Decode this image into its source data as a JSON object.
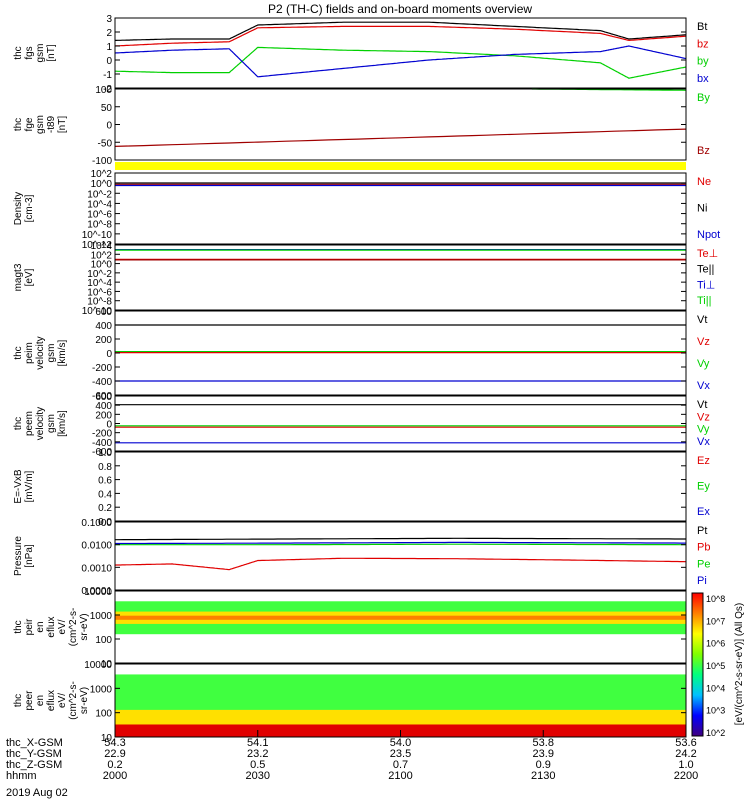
{
  "title": "P2 (TH-C) fields and on-board moments overview",
  "date": "2019 Aug 02",
  "colors": {
    "black": "#000000",
    "red": "#e00000",
    "green": "#00d000",
    "blue": "#0000d0",
    "darkred": "#a00000",
    "yellow": "#ffff00"
  },
  "x_axis": {
    "rows": [
      {
        "label": "thc_X-GSM",
        "values": [
          "54.3",
          "54.1",
          "54.0",
          "53.8",
          "53.6"
        ]
      },
      {
        "label": "thc_Y-GSM",
        "values": [
          "22.9",
          "23.2",
          "23.5",
          "23.9",
          "24.2"
        ]
      },
      {
        "label": "thc_Z-GSM",
        "values": [
          "0.2",
          "0.5",
          "0.7",
          "0.9",
          "1.0"
        ]
      },
      {
        "label": "hhmm",
        "values": [
          "2000",
          "2030",
          "2100",
          "2130",
          "2200"
        ]
      }
    ]
  },
  "colorbar": {
    "label": "[eV/(cm^2-s-sr-eV)] (All Qs)",
    "ticks": [
      "10^8",
      "10^7",
      "10^6",
      "10^5",
      "10^4",
      "10^3",
      "10^2"
    ]
  },
  "chart_data": [
    {
      "type": "line",
      "ylabel": [
        "thc",
        "fgs",
        "gsm",
        "[nT]"
      ],
      "ylim": [
        -2,
        3
      ],
      "yticks": [
        "3",
        "2",
        "1",
        "0",
        "-1",
        "-2"
      ],
      "legend": [
        {
          "name": "Bt",
          "color": "#000000"
        },
        {
          "name": "bz",
          "color": "#e00000"
        },
        {
          "name": "by",
          "color": "#00d000"
        },
        {
          "name": "bx",
          "color": "#0000d0"
        }
      ],
      "series": [
        {
          "name": "Bt",
          "color": "#000000",
          "x": [
            0,
            0.1,
            0.2,
            0.25,
            0.4,
            0.55,
            0.7,
            0.85,
            0.9,
            1
          ],
          "y": [
            1.4,
            1.5,
            1.5,
            2.5,
            2.7,
            2.7,
            2.4,
            2.1,
            1.5,
            1.8
          ]
        },
        {
          "name": "bz",
          "color": "#e00000",
          "x": [
            0,
            0.1,
            0.2,
            0.25,
            0.4,
            0.55,
            0.7,
            0.85,
            0.9,
            1
          ],
          "y": [
            1.0,
            1.2,
            1.3,
            2.3,
            2.4,
            2.4,
            2.2,
            1.9,
            1.4,
            1.7
          ]
        },
        {
          "name": "by",
          "color": "#00d000",
          "x": [
            0,
            0.1,
            0.2,
            0.25,
            0.4,
            0.55,
            0.7,
            0.85,
            0.9,
            1
          ],
          "y": [
            -0.8,
            -0.9,
            -0.9,
            0.9,
            0.7,
            0.6,
            0.3,
            -0.2,
            -1.3,
            -0.5
          ]
        },
        {
          "name": "bx",
          "color": "#0000d0",
          "x": [
            0,
            0.1,
            0.2,
            0.25,
            0.4,
            0.55,
            0.7,
            0.85,
            0.9,
            1
          ],
          "y": [
            0.5,
            0.7,
            0.8,
            -1.2,
            -0.6,
            0.0,
            0.4,
            0.6,
            1.0,
            0.1
          ]
        }
      ]
    },
    {
      "type": "line",
      "ylabel": [
        "thc",
        "fge",
        "gsm",
        "-t89",
        "[nT]"
      ],
      "ylim": [
        -125,
        100
      ],
      "yticks": [
        "100",
        "50",
        "0",
        "-50",
        "-100"
      ],
      "legend": [
        {
          "name": "By",
          "color": "#00d000"
        },
        {
          "name": "Bz",
          "color": "#a00000"
        }
      ],
      "series": [
        {
          "name": "By",
          "color": "#00d000",
          "x": [
            0.73,
            1
          ],
          "y": [
            100,
            96
          ]
        },
        {
          "name": "Bz",
          "color": "#a00000",
          "x": [
            0,
            1
          ],
          "y": [
            -82,
            -27
          ]
        }
      ]
    },
    {
      "type": "line",
      "ylabel": [
        "Density",
        "[cm-3]"
      ],
      "ylim": [
        -14,
        3
      ],
      "log": true,
      "yticks": [
        "10^2",
        "10^0",
        "10^-2",
        "10^-4",
        "10^-6",
        "10^-8",
        "10^-10",
        "10^-12"
      ],
      "legend": [
        {
          "name": "Ne",
          "color": "#e00000"
        },
        {
          "name": "Ni",
          "color": "#000000"
        },
        {
          "name": "Npot",
          "color": "#0000d0"
        }
      ],
      "series": [
        {
          "name": "Ni",
          "color": "#000000",
          "x": [
            0,
            1
          ],
          "y": [
            0.6,
            0.6
          ]
        },
        {
          "name": "Ne",
          "color": "#a00000",
          "x": [
            0,
            1
          ],
          "y": [
            0.3,
            0.3
          ]
        },
        {
          "name": "Npot",
          "color": "#0000d0",
          "x": [
            0,
            1
          ],
          "y": [
            0.0,
            0.0
          ]
        }
      ]
    },
    {
      "type": "line",
      "ylabel": [
        "magt3",
        "[eV]"
      ],
      "ylim": [
        -10,
        4
      ],
      "log": true,
      "yticks": [
        "10^4",
        "10^2",
        "10^0",
        "10^-2",
        "10^-4",
        "10^-6",
        "10^-8",
        "10^-10"
      ],
      "legend": [
        {
          "name": "Te⊥",
          "color": "#e00000"
        },
        {
          "name": "Te||",
          "color": "#000000"
        },
        {
          "name": "Ti⊥",
          "color": "#0000d0"
        },
        {
          "name": "Ti||",
          "color": "#00d000"
        }
      ],
      "series": [
        {
          "name": "Ti⊥",
          "color": "#0000d0",
          "x": [
            0,
            1
          ],
          "y": [
            3.0,
            3.0
          ]
        },
        {
          "name": "Ti||",
          "color": "#00d000",
          "x": [
            0,
            1
          ],
          "y": [
            2.9,
            2.9
          ]
        },
        {
          "name": "Te⊥",
          "color": "#e00000",
          "x": [
            0,
            1
          ],
          "y": [
            0.9,
            0.9
          ]
        },
        {
          "name": "Te||",
          "color": "#a00000",
          "x": [
            0,
            1
          ],
          "y": [
            0.8,
            0.8
          ]
        }
      ]
    },
    {
      "type": "line",
      "ylabel": [
        "thc",
        "peim",
        "velocity",
        "gsm",
        "[km/s]"
      ],
      "ylim": [
        -600,
        600
      ],
      "yticks": [
        "600",
        "400",
        "200",
        "0",
        "-200",
        "-400",
        "-600"
      ],
      "legend": [
        {
          "name": "Vt",
          "color": "#000000"
        },
        {
          "name": "Vz",
          "color": "#e00000"
        },
        {
          "name": "Vy",
          "color": "#00d000"
        },
        {
          "name": "Vx",
          "color": "#0000d0"
        }
      ],
      "series": [
        {
          "name": "Vt",
          "color": "#000000",
          "x": [
            0,
            1
          ],
          "y": [
            400,
            400
          ]
        },
        {
          "name": "Vy",
          "color": "#00d000",
          "x": [
            0,
            1
          ],
          "y": [
            20,
            20
          ]
        },
        {
          "name": "Vz",
          "color": "#e00000",
          "x": [
            0,
            1
          ],
          "y": [
            5,
            5
          ]
        },
        {
          "name": "Vx",
          "color": "#0000d0",
          "x": [
            0,
            1
          ],
          "y": [
            -400,
            -400
          ]
        }
      ]
    },
    {
      "type": "line",
      "ylabel": [
        "thc",
        "peem",
        "velocity",
        "gsm",
        "[km/s]"
      ],
      "ylim": [
        -600,
        600
      ],
      "yticks": [
        "600",
        "400",
        "200",
        "0",
        "-200",
        "-400",
        "-600"
      ],
      "legend": [
        {
          "name": "Vt",
          "color": "#000000"
        },
        {
          "name": "Vz",
          "color": "#e00000"
        },
        {
          "name": "Vy",
          "color": "#00d000"
        },
        {
          "name": "Vx",
          "color": "#0000d0"
        }
      ],
      "series": [
        {
          "name": "Vt",
          "color": "#000000",
          "x": [
            0,
            1
          ],
          "y": [
            410,
            410
          ]
        },
        {
          "name": "Vy",
          "color": "#00d000",
          "x": [
            0,
            1
          ],
          "y": [
            -50,
            -50
          ]
        },
        {
          "name": "Vz",
          "color": "#e00000",
          "x": [
            0,
            1
          ],
          "y": [
            -80,
            -80
          ]
        },
        {
          "name": "Vx",
          "color": "#0000d0",
          "x": [
            0,
            1
          ],
          "y": [
            -420,
            -420
          ]
        }
      ]
    },
    {
      "type": "line",
      "ylabel": [
        "E=-VxB",
        "[mV/m]"
      ],
      "ylim": [
        0,
        1
      ],
      "yticks": [
        "1.0",
        "0.8",
        "0.6",
        "0.4",
        "0.2",
        "0.0"
      ],
      "legend": [
        {
          "name": "Ez",
          "color": "#e00000"
        },
        {
          "name": "Ey",
          "color": "#00d000"
        },
        {
          "name": "Ex",
          "color": "#0000d0"
        }
      ],
      "series": []
    },
    {
      "type": "line",
      "ylabel": [
        "Pressure",
        "[nPa]"
      ],
      "ylim": [
        -4,
        -1
      ],
      "log": true,
      "yticks": [
        "0.1000",
        "0.0100",
        "0.0010",
        "0.0001"
      ],
      "legend": [
        {
          "name": "Pt",
          "color": "#000000"
        },
        {
          "name": "Pb",
          "color": "#e00000"
        },
        {
          "name": "Pe",
          "color": "#00d000"
        },
        {
          "name": "Pi",
          "color": "#0000d0"
        }
      ],
      "series": [
        {
          "name": "Pt",
          "color": "#000000",
          "x": [
            0,
            0.3,
            0.6,
            1
          ],
          "y": [
            -1.78,
            -1.75,
            -1.72,
            -1.75
          ]
        },
        {
          "name": "Pi",
          "color": "#0000d0",
          "x": [
            0,
            0.3,
            0.6,
            1
          ],
          "y": [
            -1.95,
            -1.93,
            -1.9,
            -1.93
          ]
        },
        {
          "name": "Pe",
          "color": "#00d000",
          "x": [
            0,
            0.3,
            0.6,
            1
          ],
          "y": [
            -2.0,
            -2.0,
            -1.98,
            -2.0
          ]
        },
        {
          "name": "Pb",
          "color": "#e00000",
          "x": [
            0,
            0.1,
            0.2,
            0.25,
            0.4,
            0.6,
            0.8,
            1
          ],
          "y": [
            -2.9,
            -2.85,
            -3.1,
            -2.7,
            -2.6,
            -2.62,
            -2.68,
            -2.75
          ]
        }
      ]
    },
    {
      "type": "heatmap",
      "ylabel": [
        "thc",
        "peir",
        "en",
        "eflux",
        "eV/",
        "(cm^2-s-",
        "sr-eV)"
      ],
      "ylim": [
        0.7,
        4.2
      ],
      "log": true,
      "yticks": [
        "10000",
        "1000",
        "100",
        "10"
      ],
      "bands": [
        {
          "from": 2.1,
          "to": 3.7,
          "level": 4
        },
        {
          "from": 2.6,
          "to": 3.2,
          "level": 6
        },
        {
          "from": 2.8,
          "to": 3.0,
          "level": 7
        }
      ]
    },
    {
      "type": "heatmap",
      "ylabel": [
        "thc",
        "peer",
        "en",
        "eflux",
        "eV/",
        "(cm^2-s-",
        "sr-eV)"
      ],
      "ylim": [
        0.7,
        4.2
      ],
      "log": true,
      "yticks": [
        "10000",
        "1000",
        "100",
        "10"
      ],
      "bands": [
        {
          "from": 0.7,
          "to": 3.7,
          "level": 4
        },
        {
          "from": 0.7,
          "to": 2.0,
          "level": 6
        },
        {
          "from": 0.7,
          "to": 1.3,
          "level": 8
        }
      ]
    }
  ]
}
